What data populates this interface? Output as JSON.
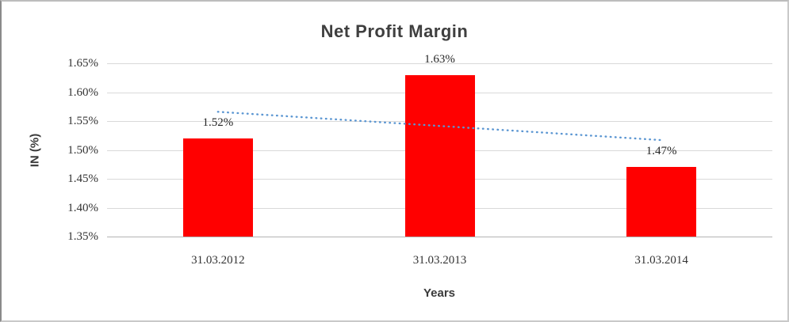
{
  "chart_data": {
    "type": "bar",
    "title": "Net Profit Margin",
    "xlabel": "Years",
    "ylabel": "IN (%)",
    "categories": [
      "31.03.2012",
      "31.03.2013",
      "31.03.2014"
    ],
    "values": [
      1.52,
      1.63,
      1.47
    ],
    "data_labels": [
      "1.52%",
      "1.63%",
      "1.47%"
    ],
    "y_ticks": [
      {
        "label": "1.65%",
        "value": 1.65
      },
      {
        "label": "1.60%",
        "value": 1.6
      },
      {
        "label": "1.55%",
        "value": 1.55
      },
      {
        "label": "1.50%",
        "value": 1.5
      },
      {
        "label": "1.45%",
        "value": 1.45
      },
      {
        "label": "1.40%",
        "value": 1.4
      },
      {
        "label": "1.35%",
        "value": 1.35
      }
    ],
    "ylim": [
      1.35,
      1.65
    ],
    "grid": true,
    "legend": "none",
    "bar_color": "#ff0000",
    "gridline_color": "#d9d9d9",
    "axis_line_color": "#b3b3b3",
    "title_color": "#3f3f3f",
    "text_color": "#333333",
    "trendline": {
      "type": "linear",
      "style": "dotted",
      "color": "#5b96d2",
      "start_value": 1.566,
      "end_value": 1.517
    }
  }
}
